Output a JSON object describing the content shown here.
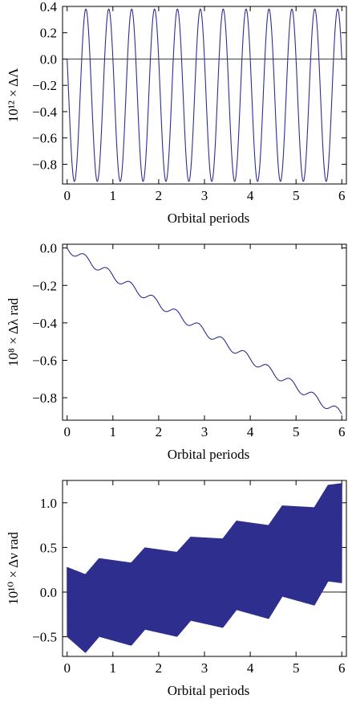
{
  "chart_data": [
    {
      "type": "line",
      "xlabel": "Orbital periods",
      "ylabel": "10¹² × ΔΛ",
      "xlim": [
        -0.1,
        6.1
      ],
      "ylim": [
        -0.95,
        0.4
      ],
      "xticks": [
        0,
        1,
        2,
        3,
        4,
        5,
        6
      ],
      "yticks": [
        0.4,
        0.2,
        0.0,
        -0.2,
        -0.4,
        -0.6,
        -0.8
      ],
      "ytick_labels": [
        "0.4",
        "0.2",
        "0.0",
        "−0.2",
        "−0.4",
        "−0.6",
        "−0.8"
      ],
      "zero_line": true,
      "series": [
        {
          "color": "#2e2e8f",
          "model": "oscillation",
          "period": 0.5,
          "min": -0.93,
          "max": 0.38,
          "start": 0.0,
          "x": [
            0,
            0.25,
            0.5,
            0.75,
            1.0,
            1.25,
            1.5,
            1.75,
            2.0,
            2.25,
            2.5,
            2.75,
            3.0,
            3.25,
            3.5,
            3.75,
            4.0,
            4.25,
            4.5,
            4.75,
            5.0,
            5.25,
            5.5,
            5.75,
            6.0
          ],
          "y": [
            0.0,
            -0.93,
            0.38,
            -0.93,
            0.38,
            -0.93,
            0.38,
            -0.93,
            0.38,
            -0.93,
            0.38,
            -0.93,
            0.38,
            -0.93,
            0.38,
            -0.93,
            0.38,
            -0.93,
            0.38,
            -0.93,
            0.38,
            -0.93,
            0.38,
            -0.93,
            0.38
          ]
        }
      ]
    },
    {
      "type": "line",
      "xlabel": "Orbital periods",
      "ylabel": "10⁸ × Δλ rad",
      "xlim": [
        -0.1,
        6.1
      ],
      "ylim": [
        -0.92,
        0.02
      ],
      "xticks": [
        0,
        1,
        2,
        3,
        4,
        5,
        6
      ],
      "yticks": [
        0.0,
        -0.2,
        -0.4,
        -0.6,
        -0.8
      ],
      "ytick_labels": [
        "0.0",
        "−0.2",
        "−0.4",
        "−0.6",
        "−0.8"
      ],
      "zero_line": false,
      "series": [
        {
          "color": "#2e2e8f",
          "model": "drift",
          "slope": -0.148,
          "ripple": 0.022,
          "period": 0.5,
          "x": [
            0,
            0.5,
            1.0,
            1.5,
            2.0,
            2.5,
            3.0,
            3.5,
            4.0,
            4.5,
            5.0,
            5.5,
            6.0
          ],
          "y": [
            0.0,
            -0.07,
            -0.15,
            -0.22,
            -0.3,
            -0.37,
            -0.45,
            -0.52,
            -0.6,
            -0.67,
            -0.75,
            -0.82,
            -0.89
          ]
        }
      ]
    },
    {
      "type": "line",
      "xlabel": "Orbital periods",
      "ylabel": "10¹⁰ × Δν rad",
      "xlim": [
        -0.1,
        6.1
      ],
      "ylim": [
        -0.72,
        1.25
      ],
      "xticks": [
        0,
        1,
        2,
        3,
        4,
        5,
        6
      ],
      "yticks": [
        1.0,
        0.5,
        0.0,
        -0.5
      ],
      "ytick_labels": [
        "1.0",
        "0.5",
        "0.0",
        "−0.5"
      ],
      "zero_line": true,
      "series": [
        {
          "color": "#2e2e8f",
          "model": "envelope",
          "period": 0.5,
          "x": [
            0,
            0.4,
            0.7,
            1.4,
            1.7,
            2.4,
            2.7,
            3.4,
            3.7,
            4.4,
            4.7,
            5.4,
            5.7,
            6.0
          ],
          "upper": [
            0.28,
            0.2,
            0.38,
            0.33,
            0.5,
            0.45,
            0.62,
            0.6,
            0.8,
            0.75,
            0.97,
            0.95,
            1.2,
            1.22
          ],
          "lower": [
            -0.5,
            -0.68,
            -0.5,
            -0.6,
            -0.42,
            -0.5,
            -0.32,
            -0.4,
            -0.2,
            -0.3,
            -0.05,
            -0.15,
            0.12,
            0.1
          ]
        }
      ]
    }
  ]
}
